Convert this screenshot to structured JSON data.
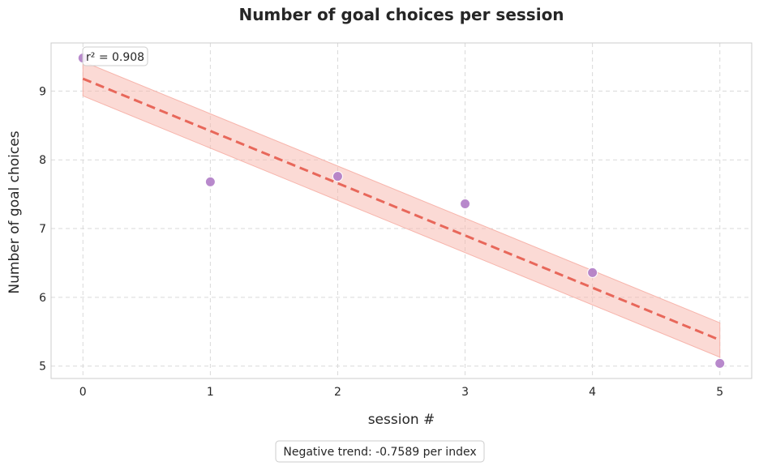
{
  "chart_data": {
    "type": "scatter",
    "title": "Number of goal choices per session",
    "xlabel": "session #",
    "ylabel": "Number of goal choices",
    "xlim": [
      -0.25,
      5.25
    ],
    "ylim": [
      4.82,
      9.7
    ],
    "x_ticks": [
      0,
      1,
      2,
      3,
      4,
      5
    ],
    "y_ticks": [
      5,
      6,
      7,
      8,
      9
    ],
    "grid": true,
    "series": [
      {
        "x": [
          0,
          1,
          2,
          3,
          4,
          5
        ],
        "y": [
          9.48,
          7.68,
          7.76,
          7.36,
          6.36,
          5.04
        ],
        "color": "#b07cc6"
      }
    ],
    "trend": {
      "x": [
        0,
        5
      ],
      "y": [
        9.18,
        5.38
      ],
      "band_lower": [
        8.93,
        5.13
      ],
      "band_upper": [
        9.43,
        5.63
      ],
      "color": "#e8675a",
      "band_color": "#f7b5ac",
      "style": "dashed"
    },
    "r2_label": "r² = 0.908",
    "trend_note": "Negative trend: -0.7589 per index"
  }
}
